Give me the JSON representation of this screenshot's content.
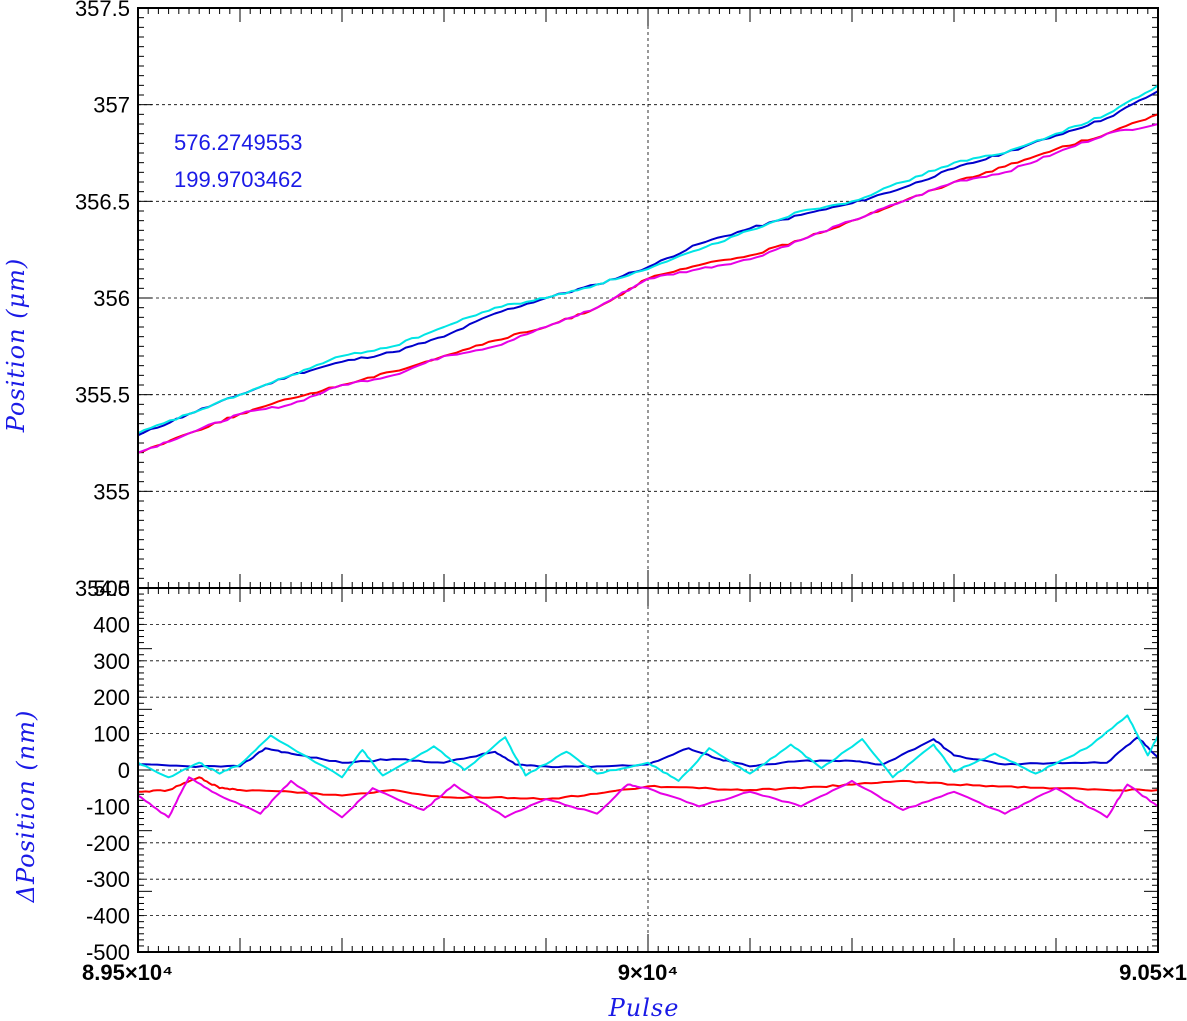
{
  "chart_data": [
    {
      "type": "line",
      "panel": "top",
      "ylabel": "Position (μm)",
      "ylim": [
        354.5,
        357.5
      ],
      "yticks": [
        "357.5",
        "357",
        "356.5",
        "356",
        "355.5",
        "355",
        "354.5"
      ],
      "xlim": [
        89500,
        90500
      ],
      "grid": true,
      "annotations": [
        "576.2749553",
        "199.9703462"
      ],
      "series": [
        {
          "color": "#0000cc",
          "points": [
            [
              89500,
              355.29
            ],
            [
              89550,
              355.4
            ],
            [
              89600,
              355.5
            ],
            [
              89650,
              355.6
            ],
            [
              89700,
              355.67
            ],
            [
              89750,
              355.72
            ],
            [
              89800,
              355.8
            ],
            [
              89850,
              355.92
            ],
            [
              89900,
              356.0
            ],
            [
              89950,
              356.07
            ],
            [
              90000,
              356.16
            ],
            [
              90050,
              356.28
            ],
            [
              90100,
              356.36
            ],
            [
              90150,
              356.43
            ],
            [
              90200,
              356.49
            ],
            [
              90250,
              356.57
            ],
            [
              90300,
              356.67
            ],
            [
              90350,
              356.75
            ],
            [
              90400,
              356.84
            ],
            [
              90450,
              356.93
            ],
            [
              90500,
              357.07
            ]
          ]
        },
        {
          "color": "#00e5e5",
          "points": [
            [
              89500,
              355.3
            ],
            [
              89550,
              355.4
            ],
            [
              89600,
              355.5
            ],
            [
              89650,
              355.6
            ],
            [
              89700,
              355.7
            ],
            [
              89750,
              355.75
            ],
            [
              89800,
              355.85
            ],
            [
              89850,
              355.95
            ],
            [
              89900,
              356.0
            ],
            [
              89950,
              356.07
            ],
            [
              90000,
              356.15
            ],
            [
              90050,
              356.25
            ],
            [
              90100,
              356.35
            ],
            [
              90150,
              356.45
            ],
            [
              90200,
              356.5
            ],
            [
              90250,
              356.6
            ],
            [
              90300,
              356.7
            ],
            [
              90350,
              356.75
            ],
            [
              90400,
              356.85
            ],
            [
              90450,
              356.95
            ],
            [
              90500,
              357.1
            ]
          ]
        },
        {
          "color": "#ff0000",
          "points": [
            [
              89500,
              355.2
            ],
            [
              89550,
              355.3
            ],
            [
              89600,
              355.4
            ],
            [
              89650,
              355.48
            ],
            [
              89700,
              355.55
            ],
            [
              89750,
              355.62
            ],
            [
              89800,
              355.7
            ],
            [
              89850,
              355.78
            ],
            [
              89900,
              355.85
            ],
            [
              89950,
              355.95
            ],
            [
              90000,
              356.1
            ],
            [
              90050,
              356.17
            ],
            [
              90100,
              356.22
            ],
            [
              90150,
              356.3
            ],
            [
              90200,
              356.4
            ],
            [
              90250,
              356.5
            ],
            [
              90300,
              356.6
            ],
            [
              90350,
              356.68
            ],
            [
              90400,
              356.77
            ],
            [
              90450,
              356.85
            ],
            [
              90500,
              356.95
            ]
          ]
        },
        {
          "color": "#e600e6",
          "points": [
            [
              89500,
              355.2
            ],
            [
              89550,
              355.3
            ],
            [
              89600,
              355.4
            ],
            [
              89650,
              355.45
            ],
            [
              89700,
              355.55
            ],
            [
              89750,
              355.6
            ],
            [
              89800,
              355.7
            ],
            [
              89850,
              355.75
            ],
            [
              89900,
              355.85
            ],
            [
              89950,
              355.95
            ],
            [
              90000,
              356.1
            ],
            [
              90050,
              356.15
            ],
            [
              90100,
              356.2
            ],
            [
              90150,
              356.3
            ],
            [
              90200,
              356.4
            ],
            [
              90250,
              356.5
            ],
            [
              90300,
              356.6
            ],
            [
              90350,
              356.65
            ],
            [
              90400,
              356.75
            ],
            [
              90450,
              356.85
            ],
            [
              90500,
              356.9
            ]
          ]
        }
      ]
    },
    {
      "type": "line",
      "panel": "bottom",
      "xlabel": "Pulse",
      "ylabel": "ΔPosition (nm)",
      "ylim": [
        -500,
        500
      ],
      "yticks": [
        "500",
        "400",
        "300",
        "200",
        "100",
        "0",
        "-100",
        "-200",
        "-300",
        "-400",
        "-500"
      ],
      "xlim": [
        89500,
        90500
      ],
      "xticks": [
        "8.95×10⁴",
        "9×10⁴",
        "9.05×1"
      ],
      "grid": true,
      "series": [
        {
          "color": "#0000cc",
          "points": [
            [
              89500,
              15
            ],
            [
              89550,
              10
            ],
            [
              89600,
              10
            ],
            [
              89625,
              60
            ],
            [
              89650,
              45
            ],
            [
              89700,
              20
            ],
            [
              89750,
              30
            ],
            [
              89800,
              20
            ],
            [
              89850,
              50
            ],
            [
              89870,
              15
            ],
            [
              89900,
              10
            ],
            [
              89950,
              10
            ],
            [
              90000,
              15
            ],
            [
              90040,
              60
            ],
            [
              90070,
              30
            ],
            [
              90100,
              10
            ],
            [
              90150,
              25
            ],
            [
              90200,
              25
            ],
            [
              90230,
              15
            ],
            [
              90280,
              85
            ],
            [
              90300,
              40
            ],
            [
              90350,
              15
            ],
            [
              90400,
              20
            ],
            [
              90450,
              20
            ],
            [
              90480,
              90
            ],
            [
              90500,
              35
            ]
          ]
        },
        {
          "color": "#00e5e5",
          "points": [
            [
              89500,
              20
            ],
            [
              89530,
              -20
            ],
            [
              89560,
              20
            ],
            [
              89580,
              -10
            ],
            [
              89600,
              15
            ],
            [
              89630,
              95
            ],
            [
              89700,
              -20
            ],
            [
              89720,
              55
            ],
            [
              89740,
              -15
            ],
            [
              89790,
              65
            ],
            [
              89820,
              0
            ],
            [
              89860,
              90
            ],
            [
              89880,
              -15
            ],
            [
              89920,
              50
            ],
            [
              89950,
              -10
            ],
            [
              90000,
              20
            ],
            [
              90030,
              -30
            ],
            [
              90060,
              60
            ],
            [
              90100,
              -10
            ],
            [
              90140,
              70
            ],
            [
              90170,
              5
            ],
            [
              90210,
              85
            ],
            [
              90240,
              -20
            ],
            [
              90280,
              70
            ],
            [
              90300,
              -5
            ],
            [
              90340,
              45
            ],
            [
              90380,
              -10
            ],
            [
              90430,
              60
            ],
            [
              90470,
              150
            ],
            [
              90490,
              40
            ],
            [
              90500,
              95
            ]
          ]
        },
        {
          "color": "#ff0000",
          "points": [
            [
              89500,
              -60
            ],
            [
              89530,
              -55
            ],
            [
              89560,
              -20
            ],
            [
              89580,
              -50
            ],
            [
              89600,
              -55
            ],
            [
              89650,
              -60
            ],
            [
              89700,
              -70
            ],
            [
              89750,
              -55
            ],
            [
              89800,
              -75
            ],
            [
              89850,
              -75
            ],
            [
              89900,
              -80
            ],
            [
              89950,
              -65
            ],
            [
              90000,
              -45
            ],
            [
              90050,
              -50
            ],
            [
              90100,
              -55
            ],
            [
              90150,
              -50
            ],
            [
              90200,
              -40
            ],
            [
              90250,
              -30
            ],
            [
              90300,
              -40
            ],
            [
              90350,
              -45
            ],
            [
              90400,
              -50
            ],
            [
              90450,
              -55
            ],
            [
              90500,
              -55
            ]
          ]
        },
        {
          "color": "#e600e6",
          "points": [
            [
              89500,
              -70
            ],
            [
              89530,
              -130
            ],
            [
              89550,
              -20
            ],
            [
              89580,
              -70
            ],
            [
              89620,
              -120
            ],
            [
              89650,
              -30
            ],
            [
              89700,
              -130
            ],
            [
              89730,
              -50
            ],
            [
              89780,
              -110
            ],
            [
              89810,
              -40
            ],
            [
              89860,
              -130
            ],
            [
              89900,
              -80
            ],
            [
              89950,
              -120
            ],
            [
              89980,
              -40
            ],
            [
              90000,
              -50
            ],
            [
              90050,
              -100
            ],
            [
              90100,
              -60
            ],
            [
              90150,
              -100
            ],
            [
              90200,
              -30
            ],
            [
              90250,
              -110
            ],
            [
              90300,
              -60
            ],
            [
              90350,
              -120
            ],
            [
              90400,
              -50
            ],
            [
              90450,
              -130
            ],
            [
              90470,
              -40
            ],
            [
              90500,
              -100
            ]
          ]
        }
      ]
    }
  ]
}
